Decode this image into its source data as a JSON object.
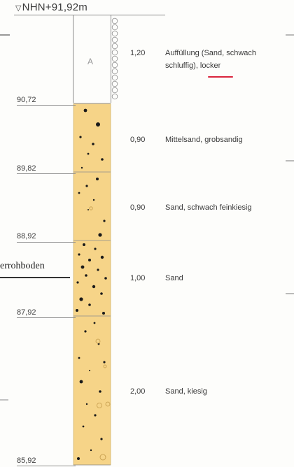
{
  "datum": {
    "symbol": "▽",
    "label": "NHN+91,92m"
  },
  "fill_symbol": "A",
  "annotation": "errohboden",
  "layers": [
    {
      "elevation": "90,72",
      "thickness": "1,20",
      "description": [
        "Auffüllung (Sand, schwach",
        "schluffig), locker"
      ],
      "fill": "#ffffff"
    },
    {
      "elevation": "89,82",
      "thickness": "0,90",
      "description": [
        "Mittelsand, grobsandig"
      ],
      "fill": "#f6d488"
    },
    {
      "elevation": "88,92",
      "thickness": "0,90",
      "description": [
        "Sand, schwach feinkiesig"
      ],
      "fill": "#f6d488"
    },
    {
      "elevation": "87,92",
      "thickness": "1,00",
      "description": [
        "Sand"
      ],
      "fill": "#f6d488"
    },
    {
      "elevation": "85,92",
      "thickness": "2,00",
      "description": [
        "Sand, kiesig"
      ],
      "fill": "#f6d488"
    }
  ],
  "colors": {
    "sand": "#f6d488",
    "dots": "#1a1a1a",
    "lines": "#8d8d8d",
    "underline": "#d9243c"
  }
}
